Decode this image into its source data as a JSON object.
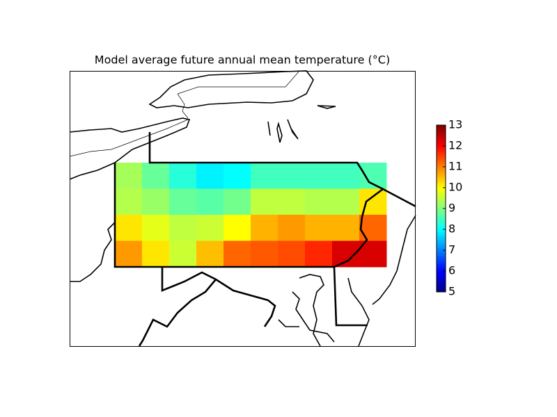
{
  "chart_data": {
    "type": "heatmap",
    "title": "Model average future annual mean temperature (°C)",
    "values": [
      [
        9.3,
        8.8,
        8.3,
        7.9,
        8.0,
        8.5,
        8.5,
        8.5,
        8.5,
        8.6
      ],
      [
        9.4,
        9.2,
        8.8,
        8.7,
        8.9,
        9.5,
        9.5,
        9.4,
        9.4,
        10.2
      ],
      [
        10.2,
        9.8,
        9.5,
        9.6,
        10.0,
        10.6,
        10.8,
        10.6,
        10.6,
        11.2
      ],
      [
        10.8,
        10.2,
        9.6,
        10.5,
        11.2,
        11.3,
        11.4,
        11.7,
        12.3,
        12.3
      ]
    ],
    "colormap": "jet",
    "clim": [
      5,
      13
    ],
    "cticks": [
      5,
      6,
      7,
      8,
      9,
      10,
      11,
      12,
      13
    ]
  }
}
